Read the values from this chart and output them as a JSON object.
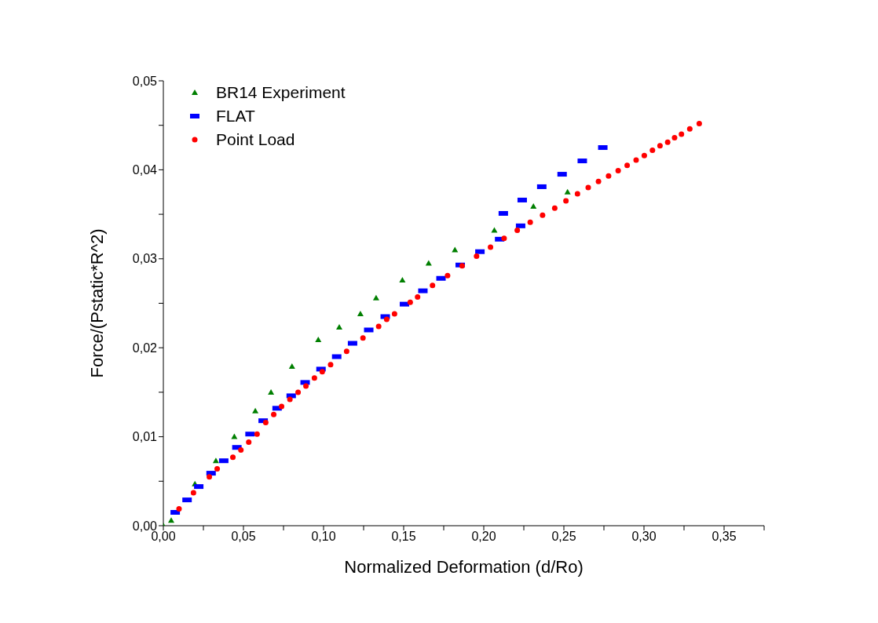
{
  "chart_data": {
    "type": "scatter",
    "xlabel": "Normalized Deformation (d/Ro)",
    "ylabel": "Force/(Pstatic*R^2)",
    "xlim": [
      0,
      0.375
    ],
    "ylim": [
      0,
      0.05
    ],
    "xticks": [
      {
        "value": 0,
        "label": "0,00"
      },
      {
        "value": 0.025,
        "label": null
      },
      {
        "value": 0.05,
        "label": "0,05"
      },
      {
        "value": 0.075,
        "label": null
      },
      {
        "value": 0.1,
        "label": "0,10"
      },
      {
        "value": 0.125,
        "label": null
      },
      {
        "value": 0.15,
        "label": "0,15"
      },
      {
        "value": 0.175,
        "label": null
      },
      {
        "value": 0.2,
        "label": "0,20"
      },
      {
        "value": 0.225,
        "label": null
      },
      {
        "value": 0.25,
        "label": "0,25"
      },
      {
        "value": 0.275,
        "label": null
      },
      {
        "value": 0.3,
        "label": "0,30"
      },
      {
        "value": 0.325,
        "label": null
      },
      {
        "value": 0.35,
        "label": "0,35"
      },
      {
        "value": 0.375,
        "label": null
      }
    ],
    "yticks": [
      {
        "value": 0,
        "label": "0,00"
      },
      {
        "value": 0.005,
        "label": null
      },
      {
        "value": 0.01,
        "label": "0,01"
      },
      {
        "value": 0.015,
        "label": null
      },
      {
        "value": 0.02,
        "label": "0,02"
      },
      {
        "value": 0.025,
        "label": null
      },
      {
        "value": 0.03,
        "label": "0,03"
      },
      {
        "value": 0.035,
        "label": null
      },
      {
        "value": 0.04,
        "label": "0,04"
      },
      {
        "value": 0.045,
        "label": null
      },
      {
        "value": 0.05,
        "label": "0,05"
      }
    ],
    "grid": false,
    "legend": "top left",
    "series": [
      {
        "name": "BR14 Experiment",
        "color": "#007f00",
        "marker": "triangle",
        "x": [
          0,
          0.0049,
          0.0197,
          0.0328,
          0.0443,
          0.0574,
          0.0672,
          0.0803,
          0.0967,
          0.1098,
          0.123,
          0.1328,
          0.1492,
          0.1656,
          0.182,
          0.2066,
          0.231,
          0.2523
        ],
        "values": [
          0,
          0.0006,
          0.0047,
          0.0073,
          0.01,
          0.0129,
          0.015,
          0.0179,
          0.0209,
          0.0223,
          0.0238,
          0.0256,
          0.0276,
          0.0295,
          0.031,
          0.0332,
          0.0359,
          0.0375
        ]
      },
      {
        "name": "FLAT",
        "color": "#0000ff",
        "marker": "square",
        "x": [
          0.0074,
          0.0148,
          0.0221,
          0.0298,
          0.0377,
          0.0459,
          0.0541,
          0.0623,
          0.071,
          0.0798,
          0.0885,
          0.0984,
          0.1082,
          0.1181,
          0.1282,
          0.1385,
          0.1505,
          0.162,
          0.1733,
          0.1853,
          0.1976,
          0.2099,
          0.223,
          0.2122,
          0.224,
          0.2362,
          0.2489,
          0.2615,
          0.2743
        ],
        "values": [
          0.0015,
          0.0029,
          0.0044,
          0.0059,
          0.0073,
          0.0088,
          0.0103,
          0.0118,
          0.0132,
          0.0146,
          0.0161,
          0.0176,
          0.019,
          0.0205,
          0.022,
          0.0235,
          0.0249,
          0.0264,
          0.0278,
          0.0293,
          0.0308,
          0.0322,
          0.0337,
          0.0351,
          0.0366,
          0.0381,
          0.0395,
          0.041,
          0.0425
        ]
      },
      {
        "name": "Point Load",
        "color": "#ff0000",
        "marker": "circle",
        "x": [
          0.0098,
          0.0188,
          0.0287,
          0.0336,
          0.0434,
          0.0484,
          0.0533,
          0.0585,
          0.0639,
          0.0689,
          0.0738,
          0.079,
          0.0841,
          0.089,
          0.0943,
          0.0992,
          0.1044,
          0.1144,
          0.1246,
          0.1344,
          0.1394,
          0.1443,
          0.1541,
          0.1587,
          0.168,
          0.1774,
          0.1865,
          0.1955,
          0.2042,
          0.2127,
          0.2209,
          0.229,
          0.2367,
          0.2443,
          0.2513,
          0.2585,
          0.2652,
          0.2716,
          0.2779,
          0.2839,
          0.2895,
          0.2951,
          0.3002,
          0.3053,
          0.31,
          0.3148,
          0.3191,
          0.3234,
          0.3286,
          0.3345
        ],
        "values": [
          0.0019,
          0.0037,
          0.0055,
          0.0064,
          0.0077,
          0.0085,
          0.0094,
          0.0103,
          0.0116,
          0.0125,
          0.0134,
          0.0142,
          0.015,
          0.0157,
          0.0166,
          0.0173,
          0.0181,
          0.0196,
          0.0211,
          0.0224,
          0.0232,
          0.0238,
          0.0251,
          0.0257,
          0.027,
          0.0281,
          0.0292,
          0.0303,
          0.0313,
          0.0323,
          0.0332,
          0.0341,
          0.0349,
          0.0357,
          0.0365,
          0.0373,
          0.038,
          0.0387,
          0.0393,
          0.0399,
          0.0405,
          0.0411,
          0.0416,
          0.0422,
          0.0427,
          0.0431,
          0.0436,
          0.044,
          0.0446,
          0.0452
        ]
      }
    ]
  }
}
